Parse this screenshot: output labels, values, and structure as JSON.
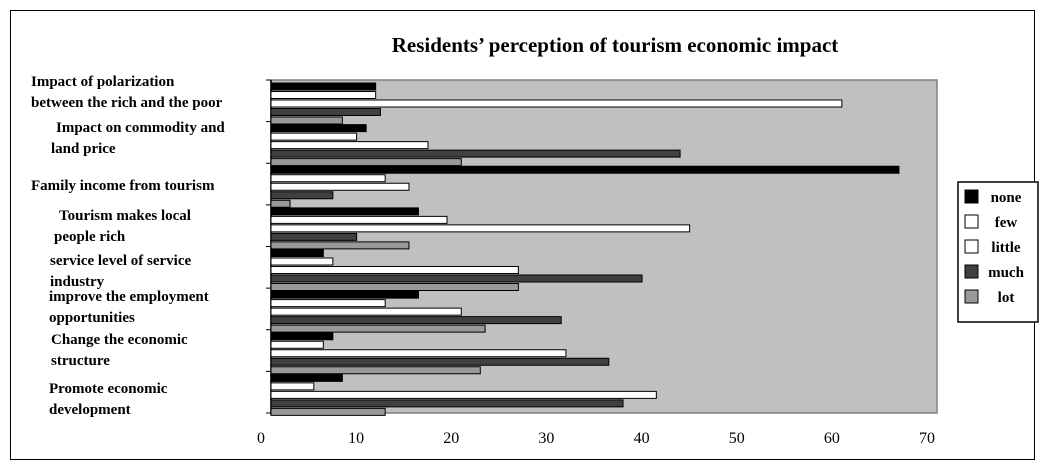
{
  "chart_data": {
    "type": "bar",
    "orientation": "horizontal",
    "title": "Residents’ perception of tourism economic impact",
    "xlabel": "",
    "ylabel": "",
    "xlim": [
      0,
      70
    ],
    "xticks": [
      0,
      10,
      20,
      30,
      40,
      50,
      60,
      70
    ],
    "grid": false,
    "plot_background": "#c0c0c0",
    "legend_position": "right",
    "categories": [
      "Impact of polarization between the rich and the poor",
      "Impact on commodity and land price",
      "Family income from tourism",
      "Tourism makes local people rich",
      "service level of service industry",
      "improve the employment opportunities",
      "Change the economic structure",
      "Promote economic development"
    ],
    "category_label_lines": [
      [
        "Impact of polarization",
        "between the rich and the poor"
      ],
      [
        "Impact on commodity and",
        "land price"
      ],
      [
        "Family income from tourism"
      ],
      [
        "Tourism makes local",
        "people rich"
      ],
      [
        "service level of service",
        "industry"
      ],
      [
        "improve the employment",
        "opportunities"
      ],
      [
        "Change the economic",
        "structure"
      ],
      [
        "Promote economic",
        "development"
      ]
    ],
    "series": [
      {
        "name": "none",
        "color": "#000000",
        "values": [
          11,
          10,
          66,
          15.5,
          5.5,
          15.5,
          6.5,
          7.5
        ]
      },
      {
        "name": "few",
        "color": "#ffffff",
        "values": [
          11,
          9,
          12,
          18.5,
          6.5,
          12,
          5.5,
          4.5
        ]
      },
      {
        "name": "little",
        "color": "#ffffff",
        "values": [
          60,
          16.5,
          14.5,
          44,
          26,
          20,
          31,
          40.5
        ]
      },
      {
        "name": "much",
        "color": "#404040",
        "values": [
          11.5,
          43,
          6.5,
          9,
          39,
          30.5,
          35.5,
          37
        ]
      },
      {
        "name": "lot",
        "color": "#999999",
        "values": [
          7.5,
          20,
          2,
          14.5,
          26,
          22.5,
          22,
          12
        ]
      }
    ]
  }
}
